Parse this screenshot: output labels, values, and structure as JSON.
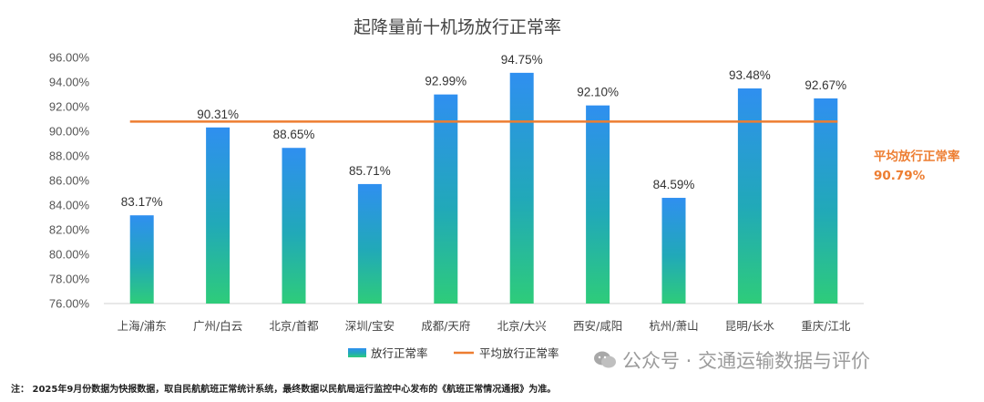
{
  "chart_data": {
    "type": "bar",
    "title": "起降量前十机场放行正常率",
    "categories": [
      "上海/浦东",
      "广州/白云",
      "北京/首都",
      "深圳/宝安",
      "成都/天府",
      "北京/大兴",
      "西安/咸阳",
      "杭州/萧山",
      "昆明/长水",
      "重庆/江北"
    ],
    "series": [
      {
        "name": "放行正常率",
        "values": [
          83.17,
          90.31,
          88.65,
          85.71,
          92.99,
          94.75,
          92.1,
          84.59,
          93.48,
          92.67
        ],
        "data_labels": [
          "83.17%",
          "90.31%",
          "88.65%",
          "85.71%",
          "92.99%",
          "94.75%",
          "92.10%",
          "84.59%",
          "93.48%",
          "92.67%"
        ],
        "color_top": "#2f8ff0",
        "color_bottom": "#2ecc7a"
      }
    ],
    "average": {
      "name": "平均放行正常率",
      "value": 90.79,
      "label_line1": "平均放行正常率",
      "label_line2": "90.79%",
      "color": "#ed7d31"
    },
    "ylim": [
      76,
      96
    ],
    "yticks": [
      76,
      78,
      80,
      82,
      84,
      86,
      88,
      90,
      92,
      94,
      96
    ],
    "ytick_labels": [
      "76.00%",
      "78.00%",
      "80.00%",
      "82.00%",
      "84.00%",
      "86.00%",
      "88.00%",
      "90.00%",
      "92.00%",
      "94.00%",
      "96.00%"
    ],
    "xlabel": "",
    "ylabel": "",
    "grid": false,
    "legend_position": "bottom"
  },
  "legend": {
    "bar_label": "放行正常率",
    "line_label": "平均放行正常率"
  },
  "footnote": "注：  2025年9月份数据为快报数据，取自民航航班正常统计系统，最终数据以民航局运行监控中心发布的《航班正常情况通报》为准。",
  "watermark": "公众号 · 交通运输数据与评价",
  "watermark_icon": "wechat-icon"
}
